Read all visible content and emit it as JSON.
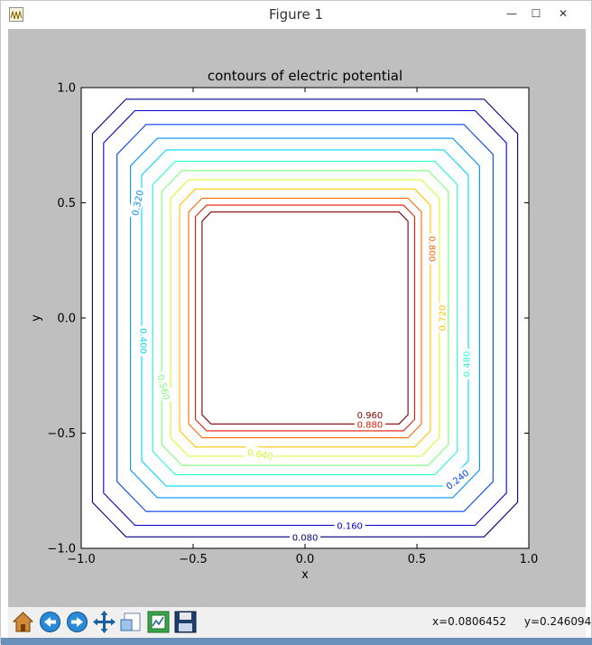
{
  "window": {
    "title": "Figure 1",
    "minimize_label": "—",
    "maximize_label": "☐",
    "close_label": "✕"
  },
  "toolbar": {
    "buttons": [
      "home-icon",
      "back-icon",
      "forward-icon",
      "pan-icon",
      "zoom-icon",
      "subplots-icon",
      "save-icon"
    ],
    "x_readout": "x=0.0806452",
    "y_readout": "y=0.246094"
  },
  "chart_data": {
    "type": "contour",
    "title": "contours of electric potential",
    "xlabel": "x",
    "ylabel": "y",
    "xlim": [
      -1.0,
      1.0
    ],
    "ylim": [
      -1.0,
      1.0
    ],
    "xticks": [
      "−1.0",
      "−0.5",
      "0.0",
      "0.5",
      "1.0"
    ],
    "yticks": [
      "−1.0",
      "−0.5",
      "0.0",
      "0.5",
      "1.0"
    ],
    "xtick_values": [
      -1.0,
      -0.5,
      0.0,
      0.5,
      1.0
    ],
    "ytick_values": [
      -1.0,
      -0.5,
      0.0,
      0.5,
      1.0
    ],
    "levels": [
      {
        "value": 0.08,
        "label": "0.080",
        "color": "#000080",
        "half": 0.95,
        "corner": 0.15
      },
      {
        "value": 0.16,
        "label": "0.160",
        "color": "#0000cc",
        "half": 0.9,
        "corner": 0.14
      },
      {
        "value": 0.24,
        "label": "0.240",
        "color": "#0040ff",
        "half": 0.84,
        "corner": 0.13
      },
      {
        "value": 0.32,
        "label": "0.320",
        "color": "#0090ff",
        "half": 0.78,
        "corner": 0.12
      },
      {
        "value": 0.4,
        "label": "0.400",
        "color": "#00d4ff",
        "half": 0.73,
        "corner": 0.11
      },
      {
        "value": 0.48,
        "label": "0.480",
        "color": "#29ffce",
        "half": 0.68,
        "corner": 0.1
      },
      {
        "value": 0.56,
        "label": "0.560",
        "color": "#7dff7a",
        "half": 0.64,
        "corner": 0.09
      },
      {
        "value": 0.64,
        "label": "0.640",
        "color": "#ceff29",
        "half": 0.6,
        "corner": 0.08
      },
      {
        "value": 0.72,
        "label": "0.720",
        "color": "#ffc400",
        "half": 0.56,
        "corner": 0.07
      },
      {
        "value": 0.8,
        "label": "0.800",
        "color": "#ff6800",
        "half": 0.52,
        "corner": 0.06
      },
      {
        "value": 0.88,
        "label": "0.880",
        "color": "#e41a00",
        "half": 0.49,
        "corner": 0.05
      },
      {
        "value": 0.96,
        "label": "0.960",
        "color": "#800000",
        "half": 0.46,
        "corner": 0.04
      }
    ],
    "inline_labels": [
      {
        "label": "0.080",
        "x": 0.0,
        "y": -0.95,
        "rotation": 0,
        "color": "#000080"
      },
      {
        "label": "0.160",
        "x": 0.2,
        "y": -0.9,
        "rotation": 0,
        "color": "#0000cc"
      },
      {
        "label": "0.240",
        "x": 0.68,
        "y": -0.7,
        "rotation": -38,
        "color": "#0040ff"
      },
      {
        "label": "0.320",
        "x": -0.75,
        "y": 0.5,
        "rotation": -78,
        "color": "#0090ff"
      },
      {
        "label": "0.400",
        "x": -0.72,
        "y": -0.1,
        "rotation": 90,
        "color": "#00d4ff"
      },
      {
        "label": "0.480",
        "x": 0.72,
        "y": -0.2,
        "rotation": -90,
        "color": "#29ffce"
      },
      {
        "label": "0.560",
        "x": -0.63,
        "y": -0.3,
        "rotation": 75,
        "color": "#7dff7a"
      },
      {
        "label": "0.640",
        "x": -0.2,
        "y": -0.59,
        "rotation": 10,
        "color": "#ceff29"
      },
      {
        "label": "0.720",
        "x": 0.61,
        "y": 0.0,
        "rotation": -90,
        "color": "#ffc400"
      },
      {
        "label": "0.800",
        "x": 0.57,
        "y": 0.3,
        "rotation": 90,
        "color": "#ff6800"
      },
      {
        "label": "0.880",
        "x": 0.29,
        "y": -0.46,
        "rotation": 0,
        "color": "#e41a00"
      },
      {
        "label": "0.960",
        "x": 0.29,
        "y": -0.42,
        "rotation": 0,
        "color": "#800000"
      }
    ],
    "grid": false,
    "legend": "none"
  }
}
